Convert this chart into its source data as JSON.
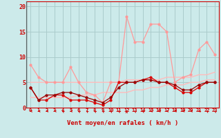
{
  "x": [
    0,
    1,
    2,
    3,
    4,
    5,
    6,
    7,
    8,
    9,
    10,
    11,
    12,
    13,
    14,
    15,
    16,
    17,
    18,
    19,
    20,
    21,
    22,
    23
  ],
  "wind_avg": [
    4,
    1.5,
    1.5,
    2.5,
    2.5,
    1.5,
    1.5,
    1.5,
    1,
    0.5,
    1.5,
    5,
    5,
    5,
    5.5,
    6,
    5,
    5,
    4,
    3,
    3,
    4,
    5,
    5
  ],
  "wind_gust": [
    8.5,
    6,
    5,
    5,
    5,
    8,
    5,
    3,
    2.5,
    1,
    5,
    5,
    18,
    13,
    13,
    16.5,
    16.5,
    15,
    5,
    6,
    6.5,
    11.5,
    13,
    10.5
  ],
  "wind_trend_low": [
    2,
    2,
    2,
    2,
    2,
    2,
    2.5,
    2.5,
    2.5,
    3,
    3,
    3,
    3,
    3.5,
    3.5,
    4,
    4,
    4.5,
    4.5,
    4.5,
    5,
    5,
    5.5,
    5.5
  ],
  "wind_trend_high": [
    5,
    5,
    5,
    5,
    5,
    5,
    5,
    5,
    5,
    5,
    5,
    5,
    5.5,
    5.5,
    5.5,
    5.5,
    5.5,
    6,
    6,
    6,
    6,
    6.5,
    6.5,
    7
  ],
  "wind_extra": [
    4,
    1.5,
    2.5,
    2.5,
    3,
    3,
    2.5,
    2,
    1.5,
    1,
    2,
    4,
    5,
    5,
    5.5,
    5.5,
    5,
    5,
    4.5,
    3.5,
    3.5,
    4.5,
    5,
    5
  ],
  "bg_color": "#cceaea",
  "grid_color": "#aacccc",
  "line_avg_color": "#dd0000",
  "line_avg2_color": "#990000",
  "line_gust_color": "#ff9999",
  "line_trend_color": "#ffbbbb",
  "marker_color": "#dd0000",
  "xlabel": "Vent moyen/en rafales ( km/h )",
  "xlabel_color": "#cc0000",
  "tick_color": "#cc0000",
  "arrow_color": "#cc0000",
  "arrow_angles": [
    270,
    270,
    270,
    270,
    225,
    270,
    225,
    225,
    225,
    225,
    225,
    225,
    180,
    225,
    225,
    270,
    270,
    270,
    270,
    270,
    270,
    270,
    225,
    225
  ],
  "yticks": [
    0,
    5,
    10,
    15,
    20
  ],
  "ylim": [
    0,
    21
  ],
  "xlim": [
    -0.5,
    23.5
  ]
}
